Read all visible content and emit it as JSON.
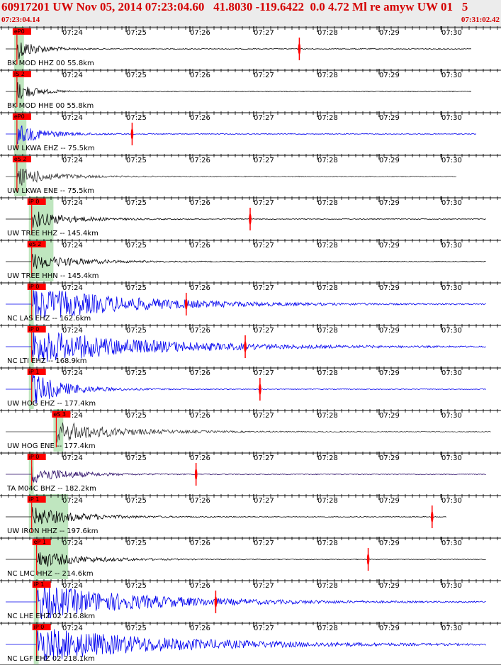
{
  "header": {
    "title": "60917201 UW Nov 05, 2014 07:23:04.60   41.8030 -119.6422  0.0 4.72 Ml re amyw UW 01   5",
    "start_time": "07:23:04.14",
    "end_time": "07:31:02.42"
  },
  "time_ticks": [
    "07:24",
    "07:25",
    "07:26",
    "07:27",
    "07:28",
    "07:29",
    "07:30"
  ],
  "colors": {
    "title": "#d40000",
    "pick_box": "#ff0000",
    "pick_line": "#ff0000",
    "window": "#bfe6bf",
    "blue": "#0000ee",
    "black": "#000000",
    "dark": "#333333",
    "purple": "#2a0a66"
  },
  "traces": [
    {
      "label": "BK MOD HHZ 00 55.8km",
      "color": "black",
      "pick": "eP0",
      "amp": 0.6,
      "decay": 30,
      "end": 0.95,
      "marker": 0.6,
      "win": [
        0.02,
        0.04
      ]
    },
    {
      "label": "BK MOD HHE 00 55.8km",
      "color": "black",
      "pick": "iS 2",
      "amp": 0.55,
      "decay": 25,
      "end": 0.95,
      "marker": null,
      "win": [
        0.02,
        0.04
      ]
    },
    {
      "label": "UW LKWA EHZ -- 75.5km",
      "color": "blue",
      "pick": "eP0",
      "amp": 0.55,
      "decay": 40,
      "end": 0.96,
      "marker": 0.26,
      "win": [
        0.02,
        0.045
      ]
    },
    {
      "label": "UW LKWA ENE -- 75.5km",
      "color": "dark",
      "pick": "eS 2",
      "amp": 0.55,
      "decay": 45,
      "end": 0.92,
      "marker": null,
      "win": [
        0.02,
        0.045
      ]
    },
    {
      "label": "UW TREE HHZ -- 145.4km",
      "color": "black",
      "pick": "iP 0",
      "amp": 0.5,
      "decay": 50,
      "end": 0.98,
      "marker": 0.5,
      "win": [
        0.05,
        0.1
      ]
    },
    {
      "label": "UW TREE HHN -- 145.4km",
      "color": "black",
      "pick": "eS 2",
      "amp": 0.45,
      "decay": 60,
      "end": 0.98,
      "marker": null,
      "win": [
        0.05,
        0.1
      ]
    },
    {
      "label": "NC LAS EHZ -- 162.6km",
      "color": "blue",
      "pick": "iP 0",
      "amp": 0.95,
      "decay": 140,
      "end": 0.98,
      "marker": 0.37,
      "win": [
        0.05,
        0.06
      ]
    },
    {
      "label": "NC LTI EHZ -- 168.9km",
      "color": "blue",
      "pick": "iP 0",
      "amp": 0.95,
      "decay": 160,
      "end": 0.98,
      "marker": 0.49,
      "win": [
        0.05,
        0.06
      ]
    },
    {
      "label": "UW HOG EHZ -- 177.4km",
      "color": "blue",
      "pick": "iP 1",
      "amp": 0.9,
      "decay": 45,
      "end": 0.98,
      "marker": 0.52,
      "win": [
        0.05,
        0.06
      ]
    },
    {
      "label": "UW HOG ENE -- 177.4km",
      "color": "dark",
      "pick": "eS 3",
      "amp": 0.6,
      "decay": 80,
      "end": 0.99,
      "marker": null,
      "win": [
        0.1,
        0.12
      ]
    },
    {
      "label": "TA M04C BHZ -- 182.2km",
      "color": "purple",
      "pick": "iP 0",
      "amp": 0.5,
      "decay": 50,
      "end": 0.98,
      "marker": 0.39,
      "win": [
        0.05,
        0.06
      ]
    },
    {
      "label": "UW IRON HHZ -- 197.6km",
      "color": "black",
      "pick": "iP 1",
      "amp": 0.55,
      "decay": 60,
      "end": 0.9,
      "marker": 0.87,
      "win": [
        0.05,
        0.13
      ]
    },
    {
      "label": "NC LMC HHZ -- 214.6km",
      "color": "black",
      "pick": "eP 1",
      "amp": 0.5,
      "decay": 60,
      "end": 0.98,
      "marker": 0.74,
      "win": [
        0.06,
        0.13
      ]
    },
    {
      "label": "NC LHE EHZ 02 216.8km",
      "color": "blue",
      "pick": "iP 1",
      "amp": 0.95,
      "decay": 150,
      "end": 0.98,
      "marker": 0.43,
      "win": [
        0.06,
        0.07
      ]
    },
    {
      "label": "NC LGF EHZ 02 218.1km",
      "color": "blue",
      "pick": "iP 0",
      "amp": 0.95,
      "decay": 180,
      "end": 0.98,
      "marker": null,
      "win": [
        0.06,
        0.07
      ]
    }
  ]
}
